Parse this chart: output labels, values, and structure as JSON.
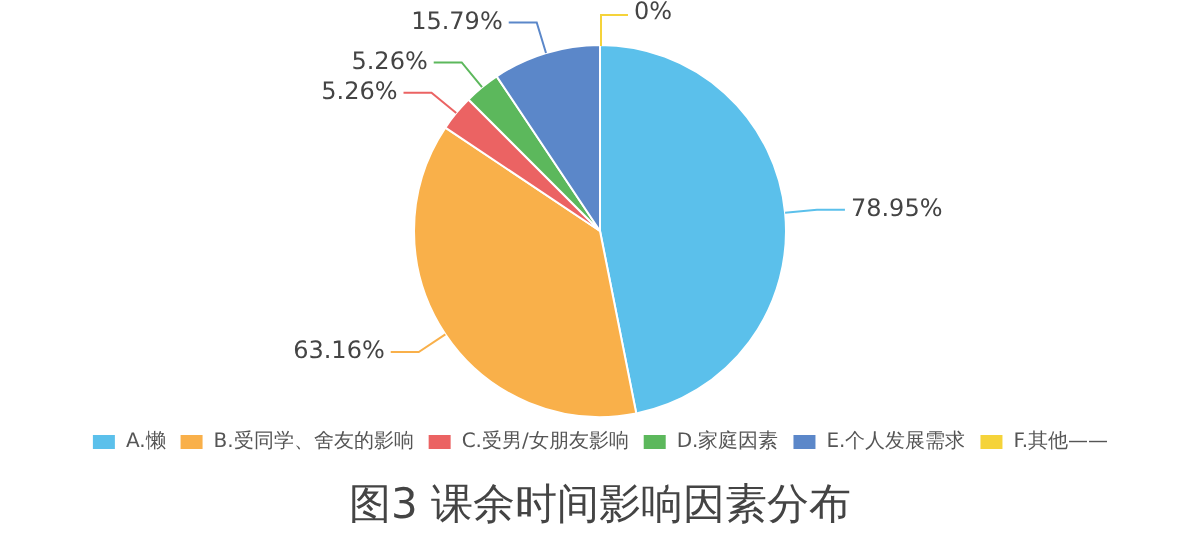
{
  "chart_data": {
    "type": "pie",
    "title": "图3 课余时间影响因素分布",
    "categories": [
      "A.懒",
      "B.受同学、舍友的影响",
      "C.受男/女朋友影响",
      "D.家庭因素",
      "E.个人发展需求",
      "F.其他——"
    ],
    "values": [
      78.95,
      63.16,
      5.26,
      5.26,
      15.79,
      0
    ],
    "value_labels": [
      "78.95%",
      "63.16%",
      "5.26%",
      "5.26%",
      "15.79%",
      "0%"
    ],
    "colors": [
      "#5bc0eb",
      "#f9b04a",
      "#eb6363",
      "#5cb85c",
      "#5b87c9",
      "#f5d33a"
    ],
    "legend": "bottom"
  }
}
